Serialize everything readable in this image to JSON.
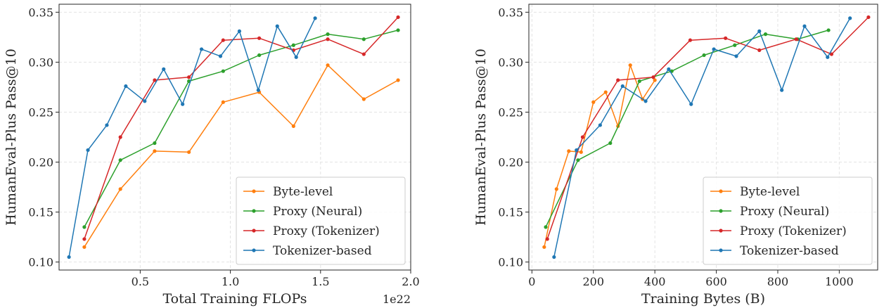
{
  "colors": {
    "byte_level": "#ff7f0e",
    "proxy_neural": "#2ca02c",
    "proxy_tokenizer": "#d62728",
    "tokenizer_based": "#1f77b4",
    "grid": "#e3e3e3",
    "frame": "#262626"
  },
  "chart_data": [
    {
      "type": "line",
      "xlabel": "Total Training FLOPs",
      "ylabel": "HumanEval-Plus Pass@10",
      "x_offset_label": "1e22",
      "xlim": [
        0.05,
        2.0
      ],
      "ylim": [
        0.092,
        0.358
      ],
      "xticks": [
        0.5,
        1.0,
        1.5,
        2.0
      ],
      "xtick_labels": [
        "0.5",
        "1.0",
        "1.5",
        "2.0"
      ],
      "yticks": [
        0.1,
        0.15,
        0.2,
        0.25,
        0.3,
        0.35
      ],
      "ytick_labels": [
        "0.10",
        "0.15",
        "0.20",
        "0.25",
        "0.30",
        "0.35"
      ],
      "grid": true,
      "legend_position": "lower-right",
      "series": [
        {
          "name": "Byte-level",
          "color_key": "byte_level",
          "x": [
            0.19,
            0.39,
            0.58,
            0.77,
            0.96,
            1.16,
            1.35,
            1.54,
            1.74,
            1.93
          ],
          "y": [
            0.115,
            0.173,
            0.211,
            0.21,
            0.26,
            0.27,
            0.236,
            0.297,
            0.263,
            0.282
          ]
        },
        {
          "name": "Proxy (Neural)",
          "color_key": "proxy_neural",
          "x": [
            0.19,
            0.39,
            0.58,
            0.77,
            0.96,
            1.16,
            1.35,
            1.54,
            1.74,
            1.93
          ],
          "y": [
            0.135,
            0.202,
            0.219,
            0.281,
            0.291,
            0.307,
            0.317,
            0.328,
            0.323,
            0.332
          ]
        },
        {
          "name": "Proxy (Tokenizer)",
          "color_key": "proxy_tokenizer",
          "x": [
            0.19,
            0.39,
            0.58,
            0.77,
            0.96,
            1.16,
            1.35,
            1.54,
            1.74,
            1.93
          ],
          "y": [
            0.123,
            0.225,
            0.282,
            0.285,
            0.322,
            0.324,
            0.312,
            0.323,
            0.308,
            0.345
          ]
        },
        {
          "name": "Tokenizer-based",
          "color_key": "tokenizer_based",
          "x": [
            0.105,
            0.21,
            0.315,
            0.42,
            0.525,
            0.63,
            0.735,
            0.84,
            0.945,
            1.05,
            1.155,
            1.26,
            1.365,
            1.47
          ],
          "y": [
            0.105,
            0.212,
            0.237,
            0.276,
            0.261,
            0.293,
            0.258,
            0.313,
            0.306,
            0.331,
            0.272,
            0.336,
            0.305,
            0.344
          ]
        }
      ]
    },
    {
      "type": "line",
      "xlabel": "Training Bytes (B)",
      "ylabel": "HumanEval-Plus Pass@10",
      "xlim": [
        -10,
        1125
      ],
      "ylim": [
        0.092,
        0.358
      ],
      "xticks": [
        0,
        200,
        400,
        600,
        800,
        1000
      ],
      "xtick_labels": [
        "0",
        "200",
        "400",
        "600",
        "800",
        "1000"
      ],
      "yticks": [
        0.1,
        0.15,
        0.2,
        0.25,
        0.3,
        0.35
      ],
      "ytick_labels": [
        "0.10",
        "0.15",
        "0.20",
        "0.25",
        "0.30",
        "0.35"
      ],
      "grid": true,
      "legend_position": "lower-right",
      "series": [
        {
          "name": "Byte-level",
          "color_key": "byte_level",
          "x": [
            40,
            80,
            120,
            160,
            200,
            240,
            280,
            320,
            360,
            400
          ],
          "y": [
            0.115,
            0.173,
            0.211,
            0.21,
            0.26,
            0.27,
            0.236,
            0.297,
            0.263,
            0.282
          ]
        },
        {
          "name": "Proxy (Neural)",
          "color_key": "proxy_neural",
          "x": [
            45,
            150,
            255,
            350,
            455,
            560,
            660,
            760,
            865,
            965
          ],
          "y": [
            0.135,
            0.202,
            0.219,
            0.281,
            0.291,
            0.307,
            0.317,
            0.328,
            0.323,
            0.332
          ]
        },
        {
          "name": "Proxy (Tokenizer)",
          "color_key": "proxy_tokenizer",
          "x": [
            50,
            165,
            280,
            395,
            515,
            630,
            740,
            860,
            975,
            1095
          ],
          "y": [
            0.123,
            0.225,
            0.282,
            0.285,
            0.322,
            0.324,
            0.312,
            0.323,
            0.308,
            0.345
          ]
        },
        {
          "name": "Tokenizer-based",
          "color_key": "tokenizer_based",
          "x": [
            72,
            145,
            222,
            295,
            370,
            445,
            518,
            592,
            665,
            740,
            813,
            887,
            962,
            1035
          ],
          "y": [
            0.105,
            0.212,
            0.237,
            0.276,
            0.261,
            0.293,
            0.258,
            0.313,
            0.306,
            0.331,
            0.272,
            0.336,
            0.305,
            0.344
          ]
        }
      ]
    }
  ]
}
